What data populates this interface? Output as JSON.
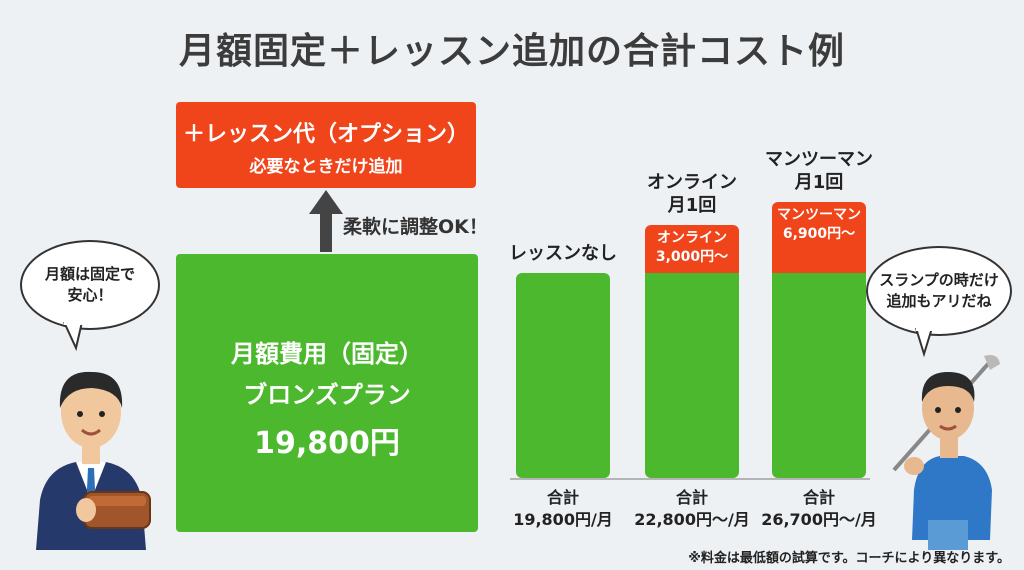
{
  "title": "月額固定＋レッスン追加の合計コスト例",
  "option_box": {
    "line1": "＋レッスン代（オプション）",
    "line2": "必要なときだけ追加"
  },
  "arrow_label": "柔軟に調整OK！",
  "fixed_box": {
    "line1": "月額費用（固定）",
    "line2": "ブロンズプラン",
    "line3": "19,800円"
  },
  "chart_data": {
    "type": "bar",
    "stacked": true,
    "categories": [
      "レッスンなし",
      "オンライン月1回",
      "マンツーマン月1回"
    ],
    "category_labels": [
      {
        "line1": "レッスンなし",
        "line2": ""
      },
      {
        "line1": "オンライン",
        "line2": "月1回"
      },
      {
        "line1": "マンツーマン",
        "line2": "月1回"
      }
    ],
    "series": [
      {
        "values": [
          19800,
          19800,
          19800
        ],
        "color": "#4cb82e"
      },
      {
        "values": [
          0,
          3000,
          6900
        ],
        "color": "#f0441b",
        "labels": [
          "",
          "オンライン",
          "マンツーマン"
        ],
        "value_labels": [
          "",
          "3,000円〜",
          "6,900円〜"
        ]
      }
    ],
    "totals": [
      {
        "line1": "合計",
        "line2": "19,800円/月"
      },
      {
        "line1": "合計",
        "line2": "22,800円〜/月"
      },
      {
        "line1": "合計",
        "line2": "26,700円〜/月"
      }
    ]
  },
  "bubble_left": {
    "line1": "月額は固定で",
    "line2": "安心！"
  },
  "bubble_right": {
    "line1": "スランプの時だけ",
    "line2": "追加もアリだね"
  },
  "footnote": "※料金は最低額の試算です。コーチにより異なります。",
  "colors": {
    "green": "#4cb82e",
    "orange": "#f0441b",
    "background": "#eef1f4"
  }
}
